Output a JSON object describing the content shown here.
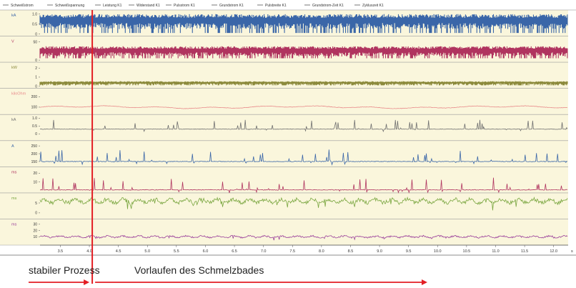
{
  "chart_data": {
    "type": "line",
    "legend": [
      "Schweißstrom",
      "Schweißspannung",
      "Leistung K1",
      "Widerstand K1",
      "Pulsstrom K1",
      "Grundstrom K1",
      "Pulsbreite K1",
      "Grundstrom-Zeit K1",
      "Zykluszeit K1"
    ],
    "xlim": [
      3.15,
      12.25
    ],
    "x_ticks": [
      "3.5",
      "4.0",
      "4.5",
      "5.0",
      "5.5",
      "6.0",
      "6.5",
      "7.0",
      "7.5",
      "8.0",
      "8.5",
      "9.0",
      "9.5",
      "10.0",
      "10.5",
      "11.0",
      "11.5",
      "12.0"
    ],
    "x_unit": "s",
    "marker_x": 4.05,
    "panels": [
      {
        "unit": "kA",
        "color": "#3a66a8",
        "ticks": [
          "1.0",
          "0.5",
          "0"
        ],
        "ylim": [
          0,
          1.1
        ],
        "style": "dense",
        "base": 0.05,
        "amp": 0.95,
        "band": [
          0.25,
          1.0
        ]
      },
      {
        "unit": "V",
        "color": "#b0345f",
        "ticks": [
          "50",
          "0"
        ],
        "ylim": [
          0,
          60
        ],
        "style": "dense",
        "base": 5,
        "amp": 35,
        "band": [
          10,
          38
        ]
      },
      {
        "unit": "kW",
        "color": "#8c8a3c",
        "ticks": [
          "2",
          "1",
          "0"
        ],
        "ylim": [
          0,
          2.4
        ],
        "style": "dense",
        "base": 0.1,
        "amp": 0.5,
        "band": [
          0.15,
          0.55
        ]
      },
      {
        "unit": "kiloOhm",
        "color": "#e88a8a",
        "ticks": [
          "200",
          "100"
        ],
        "ylim": [
          50,
          260
        ],
        "style": "smooth",
        "base": 100,
        "amp": 15
      },
      {
        "unit": "kA",
        "color": "#707070",
        "ticks": [
          "1.0",
          "0.5",
          "0"
        ],
        "ylim": [
          -0.3,
          1.1
        ],
        "style": "spikes",
        "base": 0.3,
        "amp": 0.6
      },
      {
        "unit": "A",
        "color": "#3a66a8",
        "ticks": [
          "250",
          "200",
          "150"
        ],
        "ylim": [
          130,
          270
        ],
        "style": "spikes",
        "base": 150,
        "amp": 80
      },
      {
        "unit": "ms",
        "color": "#b0345f",
        "ticks": [
          "20",
          "10"
        ],
        "ylim": [
          0,
          25
        ],
        "style": "spikes",
        "base": 1,
        "amp": 14
      },
      {
        "unit": "ms",
        "color": "#7aa640",
        "ticks": [
          "5",
          "0"
        ],
        "ylim": [
          -2,
          9
        ],
        "style": "green",
        "base": 6,
        "amp": 3
      },
      {
        "unit": "ms",
        "color": "#9a3f9a",
        "ticks": [
          "30",
          "20",
          "10"
        ],
        "ylim": [
          0,
          35
        ],
        "style": "purple",
        "base": 10,
        "amp": 4
      }
    ]
  },
  "annotations": {
    "left": "stabiler Prozess",
    "right": "Vorlaufen des Schmelzbades"
  },
  "colors": {
    "plot_bg": "#faf6dc",
    "marker": "#e31e24",
    "arrow": "#e31e24"
  }
}
